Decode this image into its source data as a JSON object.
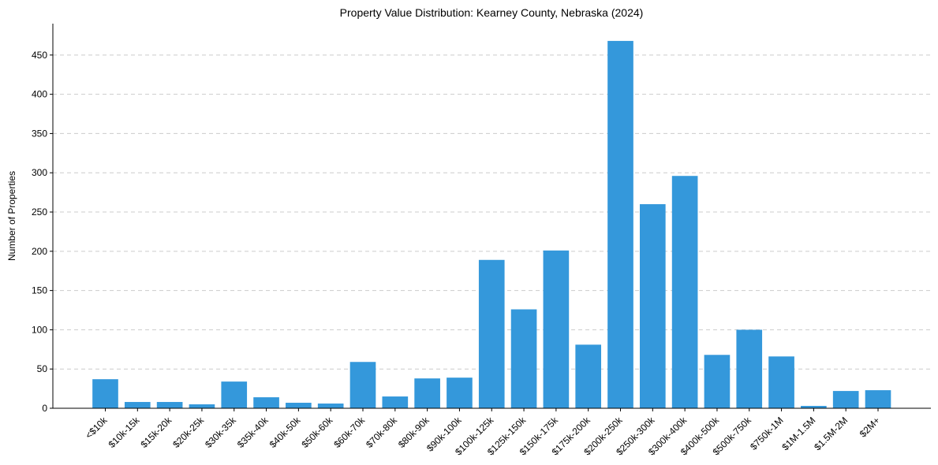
{
  "chart_data": {
    "type": "bar",
    "title": "Property Value Distribution: Kearney County, Nebraska (2024)",
    "xlabel": "",
    "ylabel": "Number of Properties",
    "ylim": [
      0,
      490
    ],
    "yticks": [
      0,
      50,
      100,
      150,
      200,
      250,
      300,
      350,
      400,
      450
    ],
    "grid": "horizontal dashed",
    "bar_color": "#3498db",
    "categories": [
      "<$10k",
      "$10k-15k",
      "$15k-20k",
      "$20k-25k",
      "$30k-35k",
      "$35k-40k",
      "$40k-50k",
      "$50k-60k",
      "$60k-70k",
      "$70k-80k",
      "$80k-90k",
      "$90k-100k",
      "$100k-125k",
      "$125k-150k",
      "$150k-175k",
      "$175k-200k",
      "$200k-250k",
      "$250k-300k",
      "$300k-400k",
      "$400k-500k",
      "$500k-750k",
      "$750k-1M",
      "$1M-1.5M",
      "$1.5M-2M",
      "$2M+"
    ],
    "values": [
      37,
      8,
      8,
      5,
      34,
      14,
      7,
      6,
      59,
      15,
      38,
      39,
      189,
      126,
      201,
      81,
      468,
      260,
      296,
      68,
      100,
      66,
      3,
      22,
      23
    ]
  }
}
